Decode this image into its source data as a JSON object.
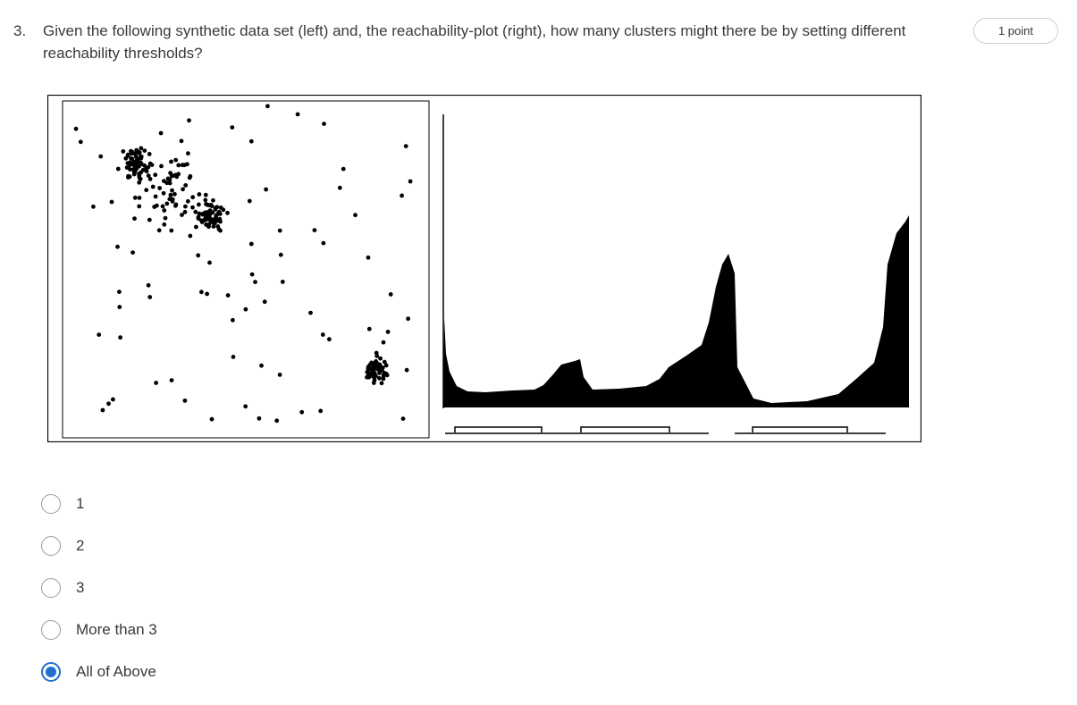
{
  "question": {
    "number": "3.",
    "text": "Given the following synthetic data set (left) and, the reachability-plot (right), how many clusters might there be by setting different reachability thresholds?",
    "points": "1 point"
  },
  "figure": {
    "scatter_icon": "scatter-plot-image",
    "reachability_icon": "reachability-plot-image"
  },
  "options": [
    {
      "label": "1",
      "selected": false
    },
    {
      "label": "2",
      "selected": false
    },
    {
      "label": "3",
      "selected": false
    },
    {
      "label": "More than 3",
      "selected": false
    },
    {
      "label": "All of Above",
      "selected": true
    }
  ],
  "colors": {
    "accent": "#1f6fd0",
    "text": "#373a3c",
    "border": "#d0d0d0"
  }
}
